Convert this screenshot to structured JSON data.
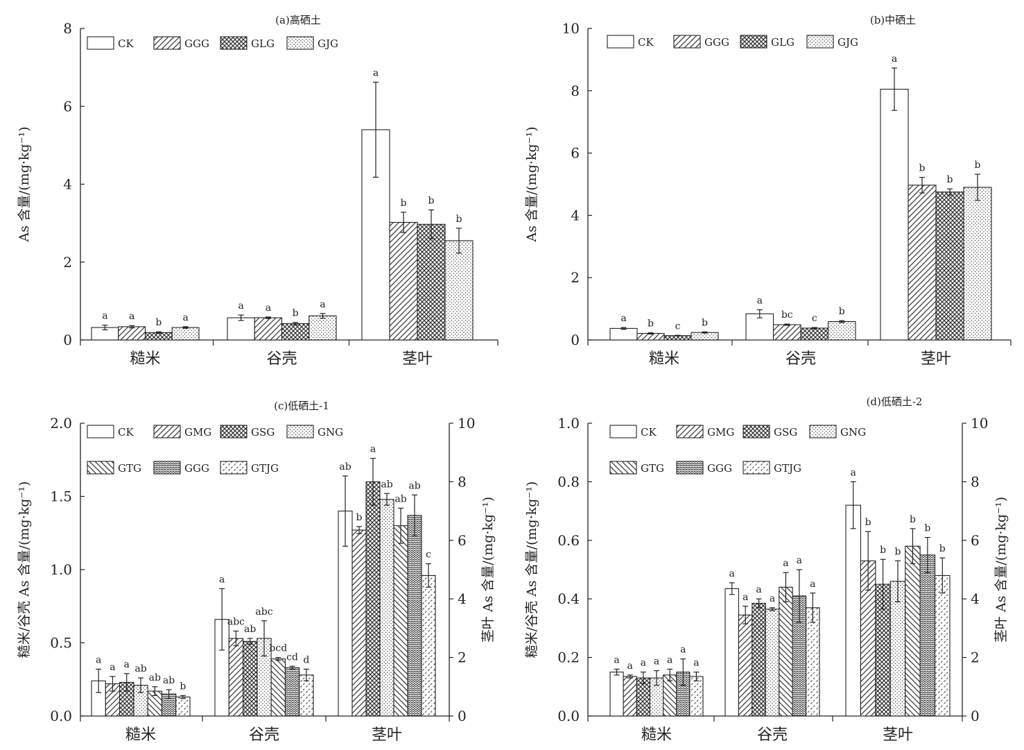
{
  "chart_data": [
    {
      "type": "bar",
      "title": "(a)高硒土",
      "ylabel": "As 含量/(mg·kg⁻¹)",
      "ylim": [
        0,
        8
      ],
      "yticks": [
        0,
        2,
        4,
        6,
        8
      ],
      "categories": [
        "糙米",
        "谷壳",
        "茎叶"
      ],
      "series": [
        {
          "name": "CK",
          "pattern": "none",
          "values": [
            0.32,
            0.57,
            5.4
          ],
          "errors": [
            0.06,
            0.07,
            1.22
          ],
          "letters": [
            "a",
            "a",
            "a"
          ]
        },
        {
          "name": "GGG",
          "pattern": "diag",
          "values": [
            0.34,
            0.57,
            3.02
          ],
          "errors": [
            0.03,
            0.02,
            0.26
          ],
          "letters": [
            "a",
            "a",
            "b"
          ]
        },
        {
          "name": "GLG",
          "pattern": "crosshatch",
          "values": [
            0.19,
            0.42,
            2.97
          ],
          "errors": [
            0.02,
            0.03,
            0.37
          ],
          "letters": [
            "b",
            "b",
            "b"
          ]
        },
        {
          "name": "GJG",
          "pattern": "dots",
          "values": [
            0.32,
            0.62,
            2.55
          ],
          "errors": [
            0.02,
            0.06,
            0.32
          ],
          "letters": [
            "a",
            "a",
            "b"
          ]
        }
      ],
      "legend_position": "top-left"
    },
    {
      "type": "bar",
      "title": "(b)中硒土",
      "ylabel": "As 含量/(mg·kg⁻¹)",
      "ylim": [
        0,
        10
      ],
      "yticks": [
        0,
        2,
        4,
        6,
        8,
        10
      ],
      "categories": [
        "糙米",
        "谷壳",
        "茎叶"
      ],
      "series": [
        {
          "name": "CK",
          "pattern": "none",
          "values": [
            0.37,
            0.84,
            8.05
          ],
          "errors": [
            0.03,
            0.13,
            0.68
          ],
          "letters": [
            "a",
            "a",
            "a"
          ]
        },
        {
          "name": "GGG",
          "pattern": "diag",
          "values": [
            0.21,
            0.49,
            4.97
          ],
          "errors": [
            0.02,
            0.02,
            0.25
          ],
          "letters": [
            "b",
            "bc",
            "b"
          ]
        },
        {
          "name": "GLG",
          "pattern": "crosshatch",
          "values": [
            0.14,
            0.38,
            4.75
          ],
          "errors": [
            0.01,
            0.02,
            0.1
          ],
          "letters": [
            "c",
            "c",
            "b"
          ]
        },
        {
          "name": "GJG",
          "pattern": "dots",
          "values": [
            0.24,
            0.59,
            4.9
          ],
          "errors": [
            0.02,
            0.03,
            0.42
          ],
          "letters": [
            "b",
            "b",
            "b"
          ]
        }
      ],
      "legend_position": "top-left"
    },
    {
      "type": "bar",
      "title": "(c)低硒土-1",
      "ylabel": "糙米/谷壳 As 含量/(mg·kg⁻¹)",
      "y2label": "茎叶 As 含量/(mg·kg⁻¹)",
      "ylim": [
        0,
        2.0
      ],
      "yticks": [
        "0.0",
        "0.5",
        "1.0",
        "1.5",
        "2.0"
      ],
      "y2lim": [
        0,
        10
      ],
      "y2ticks": [
        0,
        2,
        4,
        6,
        8,
        10
      ],
      "categories": [
        "糙米",
        "谷壳",
        "茎叶"
      ],
      "secondary_axis_category": "茎叶",
      "series": [
        {
          "name": "CK",
          "pattern": "none",
          "values": [
            0.24,
            0.66,
            7.0
          ],
          "errors": [
            0.08,
            0.21,
            1.2
          ],
          "letters": [
            "a",
            "a",
            "ab"
          ]
        },
        {
          "name": "GMG",
          "pattern": "diag",
          "values": [
            0.22,
            0.53,
            6.35
          ],
          "errors": [
            0.05,
            0.05,
            0.12
          ],
          "letters": [
            "a",
            "abc",
            "b"
          ]
        },
        {
          "name": "GSG",
          "pattern": "crosshatch",
          "values": [
            0.23,
            0.51,
            8.0
          ],
          "errors": [
            0.06,
            0.02,
            0.8
          ],
          "letters": [
            "a",
            "ab",
            "a"
          ]
        },
        {
          "name": "GNG",
          "pattern": "dots",
          "values": [
            0.21,
            0.53,
            7.4
          ],
          "errors": [
            0.05,
            0.12,
            0.2
          ],
          "letters": [
            "ab",
            "abc",
            "ab"
          ]
        },
        {
          "name": "GTG",
          "pattern": "backdiag",
          "values": [
            0.17,
            0.39,
            6.5
          ],
          "errors": [
            0.03,
            0.01,
            0.6
          ],
          "letters": [
            "ab",
            "bcd",
            "ab"
          ]
        },
        {
          "name": "GGG",
          "pattern": "wave",
          "values": [
            0.15,
            0.33,
            6.85
          ],
          "errors": [
            0.03,
            0.01,
            0.7
          ],
          "letters": [
            "ab",
            "cd",
            "ab"
          ]
        },
        {
          "name": "GTJG",
          "pattern": "chevron",
          "values": [
            0.13,
            0.28,
            4.8
          ],
          "errors": [
            0.01,
            0.04,
            0.4
          ],
          "letters": [
            "b",
            "d",
            "c"
          ]
        }
      ],
      "legend_position": "top-left"
    },
    {
      "type": "bar",
      "title": "(d)低硒土-2",
      "ylabel": "糙米/谷壳 As 含量/(mg·kg⁻¹)",
      "y2label": "茎叶 As 含量/(mg·kg⁻¹)",
      "ylim": [
        0,
        1.0
      ],
      "yticks": [
        "0.0",
        "0.2",
        "0.4",
        "0.6",
        "0.8",
        "1.0"
      ],
      "y2lim": [
        0,
        10
      ],
      "y2ticks": [
        0,
        2,
        4,
        6,
        8,
        10
      ],
      "categories": [
        "糙米",
        "谷壳",
        "茎叶"
      ],
      "secondary_axis_category": "茎叶",
      "series": [
        {
          "name": "CK",
          "pattern": "none",
          "values": [
            0.15,
            0.435,
            7.2
          ],
          "errors": [
            0.01,
            0.02,
            0.8
          ],
          "letters": [
            "a",
            "a",
            "a"
          ]
        },
        {
          "name": "GMG",
          "pattern": "diag",
          "values": [
            0.135,
            0.345,
            5.3
          ],
          "errors": [
            0.005,
            0.03,
            1.0
          ],
          "letters": [
            "a",
            "a",
            "b"
          ]
        },
        {
          "name": "GSG",
          "pattern": "crosshatch",
          "values": [
            0.13,
            0.385,
            4.5
          ],
          "errors": [
            0.02,
            0.015,
            0.85
          ],
          "letters": [
            "a",
            "a",
            "b"
          ]
        },
        {
          "name": "GNG",
          "pattern": "dots",
          "values": [
            0.13,
            0.365,
            4.6
          ],
          "errors": [
            0.025,
            0.005,
            0.7
          ],
          "letters": [
            "a",
            "a",
            "b"
          ]
        },
        {
          "name": "GTG",
          "pattern": "backdiag",
          "values": [
            0.14,
            0.44,
            5.8
          ],
          "errors": [
            0.02,
            0.05,
            0.6
          ],
          "letters": [
            "a",
            "a",
            "b"
          ]
        },
        {
          "name": "GGG",
          "pattern": "wave",
          "values": [
            0.15,
            0.41,
            5.5
          ],
          "errors": [
            0.045,
            0.09,
            0.6
          ],
          "letters": [
            "a",
            "a",
            "b"
          ]
        },
        {
          "name": "GTJG",
          "pattern": "chevron",
          "values": [
            0.135,
            0.37,
            4.8
          ],
          "errors": [
            0.015,
            0.05,
            0.6
          ],
          "letters": [
            "a",
            "a",
            "b"
          ]
        }
      ],
      "legend_position": "top-left"
    }
  ]
}
